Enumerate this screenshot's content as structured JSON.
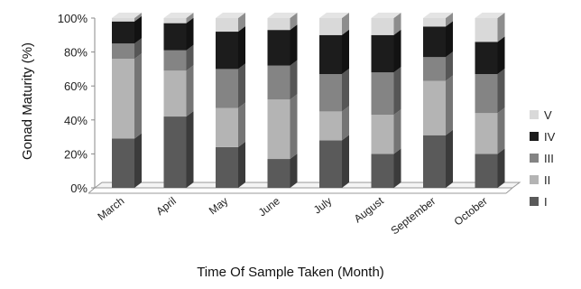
{
  "chart_data": {
    "type": "bar",
    "stacked": true,
    "percent": true,
    "three_d": true,
    "xlabel": "Time Of Sample Taken (Month)",
    "ylabel": "Gonad Maturity (%)",
    "ylim": [
      0,
      100
    ],
    "yticks": [
      "0%",
      "20%",
      "40%",
      "60%",
      "80%",
      "100%"
    ],
    "categories": [
      "March",
      "April",
      "May",
      "June",
      "July",
      "August",
      "September",
      "October"
    ],
    "legend_position": "right",
    "series": [
      {
        "name": "I",
        "color": "#5a5a5a",
        "values": [
          29,
          42,
          24,
          17,
          28,
          20,
          31,
          20
        ]
      },
      {
        "name": "II",
        "color": "#b4b4b4",
        "values": [
          47,
          27,
          23,
          35,
          17,
          23,
          32,
          24
        ]
      },
      {
        "name": "III",
        "color": "#848484",
        "values": [
          9,
          12,
          23,
          20,
          22,
          25,
          14,
          23
        ]
      },
      {
        "name": "IV",
        "color": "#1c1c1c",
        "values": [
          13,
          16,
          22,
          21,
          23,
          22,
          18,
          19
        ]
      },
      {
        "name": "V",
        "color": "#d9d9d9",
        "values": [
          2,
          3,
          8,
          7,
          10,
          10,
          5,
          14
        ]
      }
    ]
  }
}
